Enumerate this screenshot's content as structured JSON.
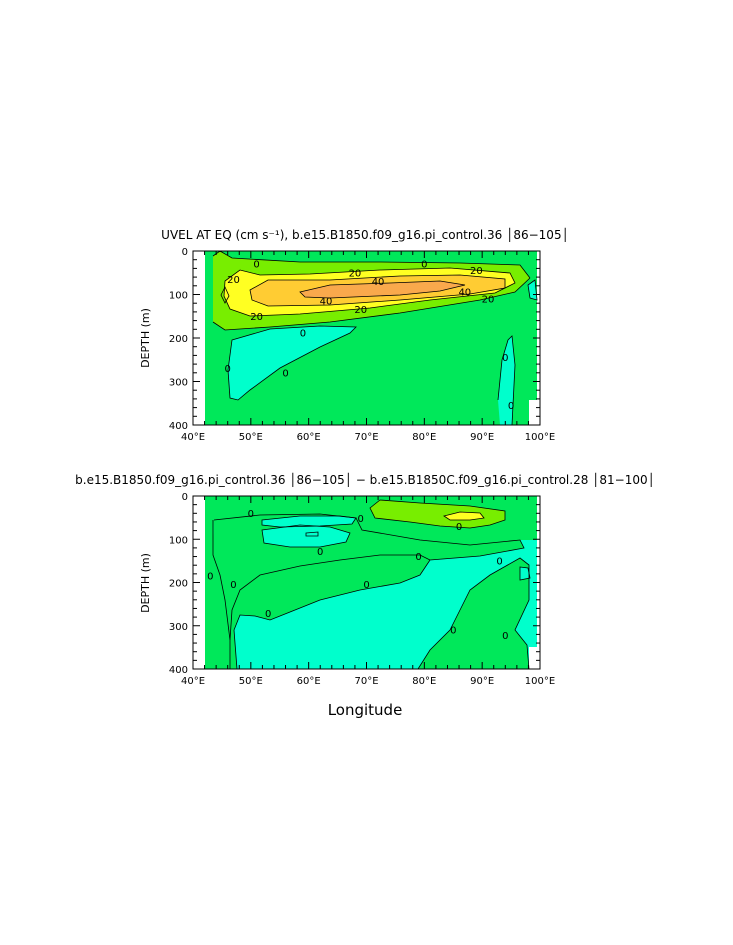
{
  "colors": {
    "c_neg": "#00ffcc",
    "c_zero": "#00e85a",
    "c_20": "#78ee00",
    "c_40": "#ffff22",
    "c_60": "#ffcc33",
    "c_70": "#f9a94c",
    "line": "#000000"
  },
  "chart_data": [
    {
      "type": "contour",
      "title": "UVEL AT EQ (cm s⁻¹), b.e15.B1850.f09_g16.pi_control.36 │86−105│",
      "xlabel": "",
      "ylabel": "DEPTH (m)",
      "xlim": [
        40,
        100
      ],
      "ylim": [
        400,
        0
      ],
      "x_ticks": [
        "40°E",
        "50°E",
        "60°E",
        "70°E",
        "80°E",
        "90°E",
        "100°E"
      ],
      "y_ticks": [
        "0",
        "100",
        "200",
        "300",
        "400"
      ],
      "contour_labels": [
        {
          "text": "0",
          "x": 51,
          "y": 30
        },
        {
          "text": "20",
          "x": 47,
          "y": 65
        },
        {
          "text": "20",
          "x": 68,
          "y": 50
        },
        {
          "text": "20",
          "x": 89,
          "y": 45
        },
        {
          "text": "40",
          "x": 72,
          "y": 70
        },
        {
          "text": "40",
          "x": 63,
          "y": 115
        },
        {
          "text": "40",
          "x": 87,
          "y": 94
        },
        {
          "text": "20",
          "x": 51,
          "y": 150
        },
        {
          "text": "20",
          "x": 69,
          "y": 135
        },
        {
          "text": "20",
          "x": 91,
          "y": 110
        },
        {
          "text": "0",
          "x": 80,
          "y": 30
        },
        {
          "text": "0",
          "x": 59,
          "y": 188
        },
        {
          "text": "0",
          "x": 56,
          "y": 280
        },
        {
          "text": "0",
          "x": 46,
          "y": 270
        },
        {
          "text": "0",
          "x": 94,
          "y": 245
        },
        {
          "text": "0",
          "x": 95,
          "y": 355
        }
      ]
    },
    {
      "type": "contour",
      "title": "b.e15.B1850.f09_g16.pi_control.36 │86−105│ − b.e15.B1850C.f09_g16.pi_control.28 │81−100│",
      "xlabel": "Longitude",
      "ylabel": "DEPTH (m)",
      "xlim": [
        40,
        100
      ],
      "ylim": [
        400,
        0
      ],
      "x_ticks": [
        "40°E",
        "50°E",
        "60°E",
        "70°E",
        "80°E",
        "90°E",
        "100°E"
      ],
      "y_ticks": [
        "0",
        "100",
        "200",
        "300",
        "400"
      ],
      "contour_labels": [
        {
          "text": "0",
          "x": 50,
          "y": 40
        },
        {
          "text": "0",
          "x": 69,
          "y": 52
        },
        {
          "text": "0",
          "x": 86,
          "y": 70
        },
        {
          "text": "0",
          "x": 62,
          "y": 128
        },
        {
          "text": "0",
          "x": 79,
          "y": 140
        },
        {
          "text": "0",
          "x": 93,
          "y": 150
        },
        {
          "text": "0",
          "x": 43,
          "y": 185
        },
        {
          "text": "0",
          "x": 47,
          "y": 205
        },
        {
          "text": "0",
          "x": 70,
          "y": 205
        },
        {
          "text": "0",
          "x": 53,
          "y": 272
        },
        {
          "text": "0",
          "x": 85,
          "y": 310
        },
        {
          "text": "0",
          "x": 94,
          "y": 322
        }
      ]
    }
  ]
}
